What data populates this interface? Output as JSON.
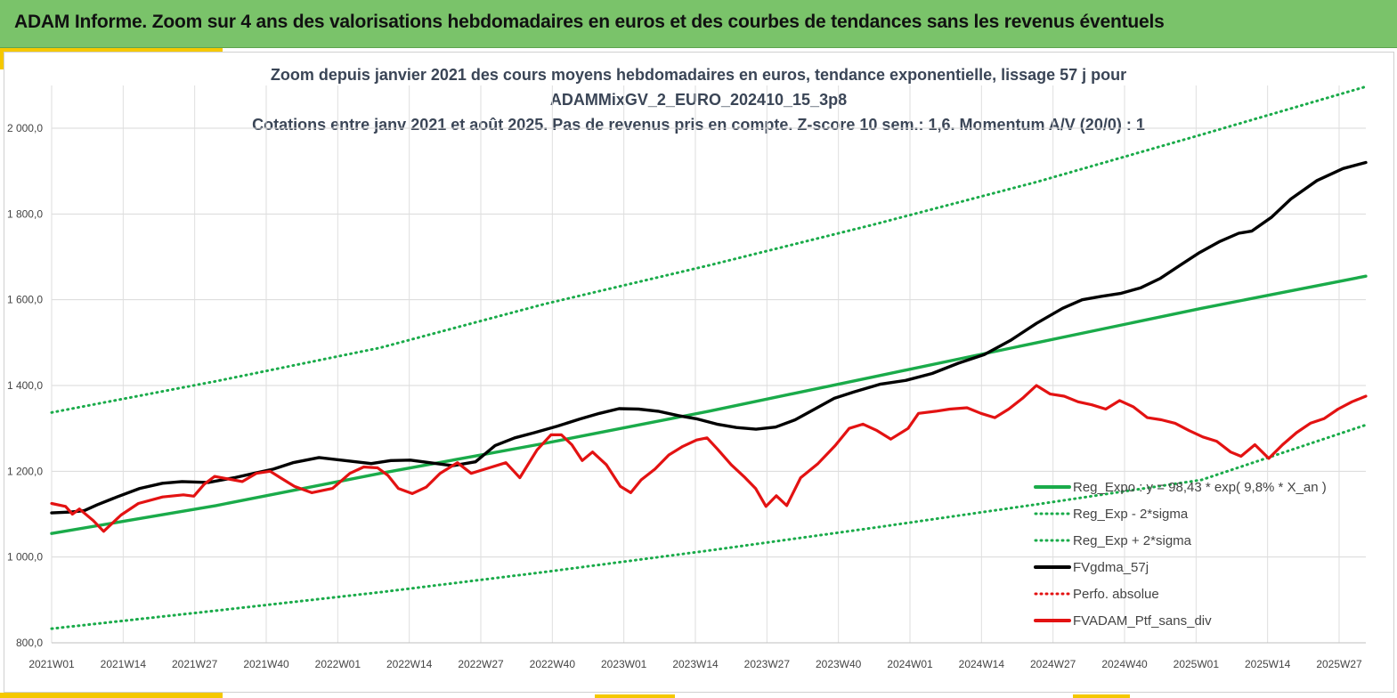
{
  "header": {
    "title": "ADAM Informe. Zoom sur 4 ans des valorisations hebdomadaires en euros et des courbes de tendances sans les revenus éventuels"
  },
  "colors": {
    "header_bg": "#7ac36a",
    "accent": "#f5c800",
    "reg_expo": "#1aab4a",
    "fvgdma": "#000000",
    "perfo": "#e31212",
    "fvadam": "#e31212"
  },
  "chart_data": {
    "type": "line",
    "title_lines": [
      "Zoom depuis janvier 2021 des cours moyens hebdomadaires  en euros, tendance exponentielle, lissage 57 j pour",
      "ADAMMixGV_2_EURO_202410_15_3p8",
      "Cotations  entre janv 2021 et août 2025. Pas de revenus pris en compte. Z-score 10 sem.: 1,6. Momentum A/V (20/0) : 1"
    ],
    "xlabel": "",
    "ylabel": "",
    "ylim": [
      800,
      2100
    ],
    "grid": true,
    "legend_position": "bottom-right",
    "x_ticks": [
      "2021W01",
      "2021W14",
      "2021W27",
      "2021W40",
      "2022W01",
      "2022W14",
      "2022W27",
      "2022W40",
      "2023W01",
      "2023W14",
      "2023W27",
      "2023W40",
      "2024W01",
      "2024W14",
      "2024W27",
      "2024W40",
      "2025W01",
      "2025W14",
      "2025W27"
    ],
    "y_ticks": [
      {
        "value": 800,
        "label": "800,0"
      },
      {
        "value": 1000,
        "label": "1 000,0"
      },
      {
        "value": 1200,
        "label": "1 200,0"
      },
      {
        "value": 1400,
        "label": "1 400,0"
      },
      {
        "value": 1600,
        "label": "1 600,0"
      },
      {
        "value": 1800,
        "label": "1 800,0"
      },
      {
        "value": 2000,
        "label": "2 000,0"
      }
    ],
    "x_range_weeks": [
      0,
      243
    ],
    "series": [
      {
        "name": "Reg_Expo : y = 98,43 * exp( 9,8% *  X_an )",
        "style": "solid-thick",
        "color": "#1aab4a",
        "points": [
          [
            0,
            1055
          ],
          [
            39,
            1120
          ],
          [
            78,
            1195
          ],
          [
            117,
            1265
          ],
          [
            156,
            1340
          ],
          [
            195,
            1420
          ],
          [
            234,
            1500
          ],
          [
            273,
            1580
          ],
          [
            312,
            1655
          ]
        ]
      },
      {
        "name": "Reg_Exp - 2*sigma",
        "style": "dotted",
        "color": "#1aab4a",
        "points": [
          [
            0,
            833
          ],
          [
            39,
            875
          ],
          [
            78,
            918
          ],
          [
            117,
            965
          ],
          [
            156,
            1015
          ],
          [
            195,
            1068
          ],
          [
            234,
            1123
          ],
          [
            273,
            1180
          ],
          [
            312,
            1308
          ]
        ]
      },
      {
        "name": "Reg_Exp + 2*sigma",
        "style": "dotted",
        "color": "#1aab4a",
        "points": [
          [
            0,
            1337
          ],
          [
            39,
            1410
          ],
          [
            78,
            1488
          ],
          [
            117,
            1590
          ],
          [
            156,
            1680
          ],
          [
            195,
            1775
          ],
          [
            234,
            1875
          ],
          [
            273,
            1985
          ],
          [
            312,
            2097
          ]
        ]
      },
      {
        "name": "FVgdma_57j",
        "style": "solid-thick",
        "color": "#000000",
        "points": [
          [
            0,
            1103
          ],
          [
            6,
            1105
          ],
          [
            10,
            1108
          ],
          [
            14,
            1122
          ],
          [
            20,
            1140
          ],
          [
            27,
            1160
          ],
          [
            34,
            1172
          ],
          [
            40,
            1176
          ],
          [
            48,
            1174
          ],
          [
            56,
            1185
          ],
          [
            62,
            1195
          ],
          [
            68,
            1205
          ],
          [
            74,
            1220
          ],
          [
            82,
            1232
          ],
          [
            90,
            1225
          ],
          [
            98,
            1218
          ],
          [
            104,
            1225
          ],
          [
            110,
            1226
          ],
          [
            118,
            1218
          ],
          [
            123,
            1213
          ],
          [
            130,
            1222
          ],
          [
            136,
            1260
          ],
          [
            142,
            1278
          ],
          [
            148,
            1290
          ],
          [
            155,
            1305
          ],
          [
            162,
            1322
          ],
          [
            168,
            1335
          ],
          [
            174,
            1346
          ],
          [
            180,
            1345
          ],
          [
            186,
            1340
          ],
          [
            192,
            1330
          ],
          [
            198,
            1322
          ],
          [
            204,
            1310
          ],
          [
            210,
            1302
          ],
          [
            216,
            1298
          ],
          [
            222,
            1303
          ],
          [
            228,
            1320
          ],
          [
            234,
            1345
          ],
          [
            240,
            1370
          ],
          [
            246,
            1385
          ],
          [
            254,
            1403
          ],
          [
            262,
            1412
          ],
          [
            270,
            1428
          ],
          [
            278,
            1452
          ],
          [
            286,
            1472
          ],
          [
            294,
            1505
          ],
          [
            302,
            1545
          ],
          [
            310,
            1580
          ],
          [
            316,
            1600
          ],
          [
            322,
            1608
          ],
          [
            328,
            1615
          ],
          [
            334,
            1628
          ],
          [
            340,
            1650
          ],
          [
            346,
            1680
          ],
          [
            352,
            1710
          ],
          [
            358,
            1735
          ],
          [
            364,
            1755
          ],
          [
            368,
            1760
          ],
          [
            374,
            1792
          ],
          [
            380,
            1835
          ],
          [
            388,
            1878
          ],
          [
            396,
            1906
          ],
          [
            403,
            1920
          ]
        ]
      },
      {
        "name": "Perfo. absolue",
        "style": "dotted",
        "color": "#e31212",
        "points": []
      },
      {
        "name": "FVADAM_Ptf_sans_div",
        "style": "solid-thick",
        "color": "#e31212",
        "points": [
          [
            0,
            1125
          ],
          [
            4,
            1118
          ],
          [
            6,
            1100
          ],
          [
            8,
            1112
          ],
          [
            12,
            1085
          ],
          [
            15,
            1060
          ],
          [
            20,
            1098
          ],
          [
            25,
            1125
          ],
          [
            32,
            1140
          ],
          [
            38,
            1145
          ],
          [
            41,
            1142
          ],
          [
            44,
            1170
          ],
          [
            47,
            1188
          ],
          [
            51,
            1182
          ],
          [
            55,
            1176
          ],
          [
            59,
            1195
          ],
          [
            63,
            1200
          ],
          [
            66,
            1185
          ],
          [
            70,
            1165
          ],
          [
            75,
            1150
          ],
          [
            81,
            1160
          ],
          [
            86,
            1195
          ],
          [
            90,
            1210
          ],
          [
            94,
            1208
          ],
          [
            97,
            1190
          ],
          [
            100,
            1160
          ],
          [
            104,
            1148
          ],
          [
            108,
            1163
          ],
          [
            112,
            1195
          ],
          [
            117,
            1220
          ],
          [
            121,
            1195
          ],
          [
            125,
            1205
          ],
          [
            131,
            1220
          ],
          [
            135,
            1185
          ],
          [
            140,
            1250
          ],
          [
            144,
            1285
          ],
          [
            147,
            1285
          ],
          [
            150,
            1262
          ],
          [
            153,
            1225
          ],
          [
            156,
            1245
          ],
          [
            160,
            1215
          ],
          [
            164,
            1165
          ],
          [
            167,
            1150
          ],
          [
            170,
            1180
          ],
          [
            174,
            1205
          ],
          [
            178,
            1238
          ],
          [
            182,
            1258
          ],
          [
            186,
            1273
          ],
          [
            189,
            1278
          ],
          [
            192,
            1252
          ],
          [
            196,
            1215
          ],
          [
            200,
            1185
          ],
          [
            203,
            1160
          ],
          [
            206,
            1118
          ],
          [
            209,
            1143
          ],
          [
            212,
            1120
          ],
          [
            216,
            1185
          ],
          [
            221,
            1218
          ],
          [
            226,
            1260
          ],
          [
            230,
            1300
          ],
          [
            234,
            1310
          ],
          [
            238,
            1295
          ],
          [
            242,
            1275
          ],
          [
            247,
            1300
          ],
          [
            250,
            1335
          ],
          [
            255,
            1340
          ],
          [
            259,
            1345
          ],
          [
            264,
            1348
          ],
          [
            268,
            1335
          ],
          [
            272,
            1325
          ],
          [
            276,
            1345
          ],
          [
            280,
            1370
          ],
          [
            284,
            1400
          ],
          [
            288,
            1380
          ],
          [
            292,
            1375
          ],
          [
            296,
            1362
          ],
          [
            300,
            1355
          ],
          [
            304,
            1345
          ],
          [
            308,
            1365
          ],
          [
            312,
            1350
          ],
          [
            316,
            1325
          ],
          [
            320,
            1320
          ],
          [
            324,
            1312
          ],
          [
            328,
            1295
          ],
          [
            332,
            1280
          ],
          [
            336,
            1270
          ],
          [
            340,
            1245
          ],
          [
            343,
            1235
          ],
          [
            347,
            1262
          ],
          [
            351,
            1230
          ],
          [
            355,
            1262
          ],
          [
            359,
            1290
          ],
          [
            363,
            1312
          ],
          [
            367,
            1323
          ],
          [
            371,
            1345
          ],
          [
            375,
            1362
          ],
          [
            379,
            1375
          ]
        ]
      }
    ]
  }
}
